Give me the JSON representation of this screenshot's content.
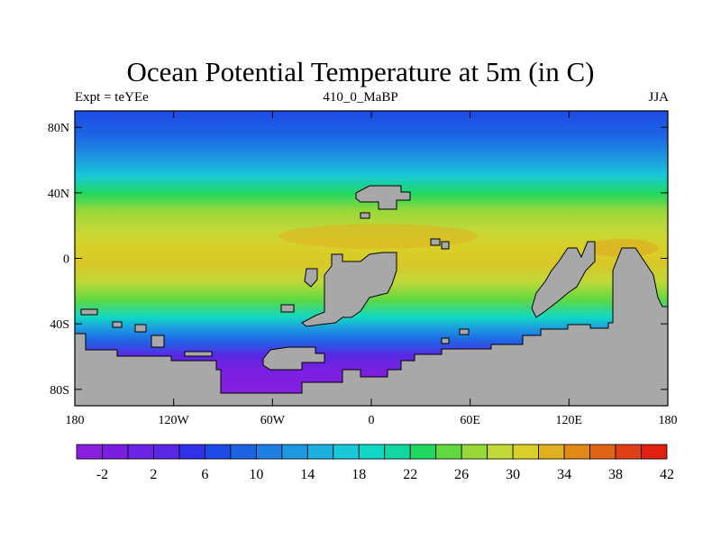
{
  "title": "Ocean Potential Temperature at 5m (in C)",
  "left_subtitle": "Expt = teYEe",
  "center_subtitle": "410_0_MaBP",
  "right_subtitle": "JJA",
  "colors": {
    "land": "#a8a8a8",
    "palette": [
      "#8a1fe0",
      "#7a1fe0",
      "#6a24e2",
      "#5a28e4",
      "#3030e8",
      "#1e4ae6",
      "#1c64e4",
      "#1e80e2",
      "#1e98e0",
      "#1cb0de",
      "#18c8d8",
      "#10d8c4",
      "#10d8a0",
      "#20d860",
      "#60d840",
      "#98d838",
      "#c0d838",
      "#d8d028",
      "#e0b020",
      "#e08818",
      "#e06418",
      "#e04018",
      "#e02010"
    ]
  },
  "axes": {
    "x_ticks": [
      "180",
      "120W",
      "60W",
      "0",
      "60E",
      "120E",
      "180"
    ],
    "y_ticks": [
      "80N",
      "40N",
      "0",
      "40S",
      "80S"
    ]
  },
  "colorbar": {
    "labels": [
      "-2",
      "2",
      "6",
      "10",
      "14",
      "18",
      "22",
      "26",
      "30",
      "34",
      "38",
      "42"
    ]
  }
}
